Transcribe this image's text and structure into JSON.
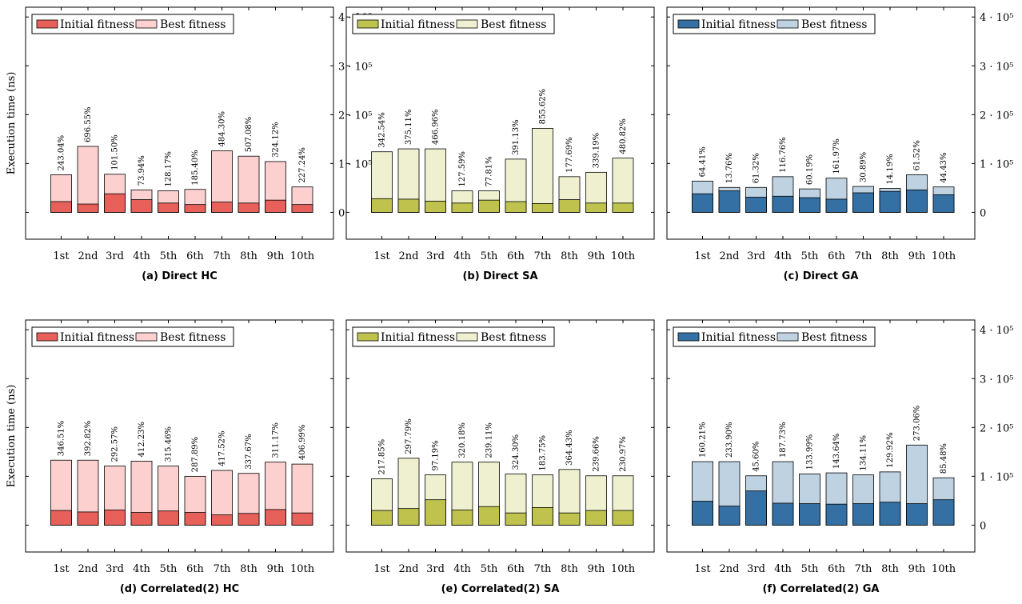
{
  "colors": {
    "hc_initial": "#e8605a",
    "hc_best": "#fbd0cf",
    "sa_initial": "#bfc34e",
    "sa_best": "#eef0cf",
    "ga_initial": "#3470a3",
    "ga_best": "#bed2e2"
  },
  "chart_data": [
    {
      "type": "bar",
      "caption": "(a) Direct HC",
      "ylabel": "Execution time (ns)",
      "ylim": [
        -55000,
        420000
      ],
      "yticks": [
        0,
        100000,
        200000,
        300000,
        400000
      ],
      "ytick_labels": [
        "0",
        "1 · 10⁵",
        "2 · 10⁵",
        "3 · 10⁵",
        "4 · 10⁵"
      ],
      "legend": [
        "Initial fitness",
        "Best fitness"
      ],
      "legend_position": "top-left",
      "categories": [
        "1st",
        "2nd",
        "3rd",
        "4th",
        "5th",
        "6th",
        "7th",
        "8th",
        "9th",
        "10th"
      ],
      "series": [
        {
          "name": "Initial fitness",
          "values": [
            22000,
            17000,
            38000,
            26000,
            19000,
            16000,
            21000,
            19000,
            25000,
            16000
          ]
        },
        {
          "name": "Best fitness",
          "values": [
            77000,
            135000,
            78000,
            46000,
            44000,
            47000,
            126000,
            115000,
            104000,
            52000
          ]
        }
      ],
      "data_labels": [
        "243.04%",
        "696.55%",
        "101.50%",
        "73.94%",
        "128.17%",
        "185.40%",
        "484.30%",
        "507.08%",
        "324.12%",
        "227.24%"
      ],
      "palette": "hc"
    },
    {
      "type": "bar",
      "caption": "(b) Direct SA",
      "ylabel": "",
      "ylim": [
        -55000,
        420000
      ],
      "legend": [
        "Initial fitness",
        "Best fitness"
      ],
      "legend_position": "top-left",
      "categories": [
        "1st",
        "2nd",
        "3rd",
        "4th",
        "5th",
        "6th",
        "7th",
        "8th",
        "9th",
        "10th"
      ],
      "series": [
        {
          "name": "Initial fitness",
          "values": [
            28000,
            27000,
            23000,
            19000,
            25000,
            22000,
            18000,
            26000,
            19000,
            19000
          ]
        },
        {
          "name": "Best fitness",
          "values": [
            124000,
            130000,
            130000,
            44000,
            44000,
            109000,
            172000,
            73000,
            82000,
            111000
          ]
        }
      ],
      "data_labels": [
        "342.54%",
        "375.11%",
        "466.96%",
        "127.59%",
        "77.81%",
        "391.13%",
        "855.62%",
        "177.69%",
        "339.19%",
        "480.82%"
      ],
      "palette": "sa"
    },
    {
      "type": "bar",
      "caption": "(c) Direct GA",
      "ylabel": "",
      "ylim": [
        -55000,
        420000
      ],
      "yticks": [
        0,
        100000,
        200000,
        300000,
        400000
      ],
      "ytick_labels": [
        "0",
        "1 · 10⁵",
        "2 · 10⁵",
        "3 · 10⁵",
        "4 · 10⁵"
      ],
      "legend": [
        "Initial fitness",
        "Best fitness"
      ],
      "legend_position": "top-left",
      "categories": [
        "1st",
        "2nd",
        "3rd",
        "4th",
        "5th",
        "6th",
        "7th",
        "8th",
        "9th",
        "10th"
      ],
      "series": [
        {
          "name": "Initial fitness",
          "values": [
            38000,
            44000,
            31000,
            33000,
            30000,
            27000,
            40000,
            43000,
            46000,
            36000
          ]
        },
        {
          "name": "Best fitness",
          "values": [
            64000,
            51000,
            51000,
            73000,
            48000,
            70000,
            53000,
            49000,
            77000,
            52000
          ]
        }
      ],
      "data_labels": [
        "64.41%",
        "13.76%",
        "61.32%",
        "116.76%",
        "60.19%",
        "161.97%",
        "30.89%",
        "14.19%",
        "61.52%",
        "44.43%"
      ],
      "palette": "ga"
    },
    {
      "type": "bar",
      "caption": "(d) Correlated(2) HC",
      "ylabel": "Execution time (ns)",
      "ylim": [
        -55000,
        420000
      ],
      "legend": [
        "Initial fitness",
        "Best fitness"
      ],
      "legend_position": "top-left",
      "categories": [
        "1st",
        "2nd",
        "3rd",
        "4th",
        "5th",
        "6th",
        "7th",
        "8th",
        "9th",
        "10th"
      ],
      "series": [
        {
          "name": "Initial fitness",
          "values": [
            30000,
            27000,
            31000,
            26000,
            29000,
            26000,
            21000,
            24000,
            32000,
            25000
          ]
        },
        {
          "name": "Best fitness",
          "values": [
            133000,
            133000,
            121000,
            131000,
            121000,
            100000,
            112000,
            106000,
            129000,
            125000
          ]
        }
      ],
      "data_labels": [
        "346.51%",
        "392.82%",
        "292.57%",
        "412.23%",
        "315.46%",
        "287.89%",
        "417.52%",
        "337.67%",
        "311.17%",
        "406.99%"
      ],
      "palette": "hc"
    },
    {
      "type": "bar",
      "caption": "(e) Correlated(2) SA",
      "ylabel": "",
      "ylim": [
        -55000,
        420000
      ],
      "legend": [
        "Initial fitness",
        "Best fitness"
      ],
      "legend_position": "top-left",
      "categories": [
        "1st",
        "2nd",
        "3rd",
        "4th",
        "5th",
        "6th",
        "7th",
        "8th",
        "9th",
        "10th"
      ],
      "series": [
        {
          "name": "Initial fitness",
          "values": [
            30000,
            34000,
            52000,
            31000,
            38000,
            25000,
            36000,
            25000,
            30000,
            30000
          ]
        },
        {
          "name": "Best fitness",
          "values": [
            95000,
            137000,
            103000,
            129000,
            129000,
            105000,
            103000,
            114000,
            101000,
            101000
          ]
        }
      ],
      "data_labels": [
        "217.85%",
        "297.79%",
        "97.19%",
        "320.18%",
        "239.11%",
        "324.30%",
        "183.75%",
        "364.43%",
        "239.66%",
        "230.97%"
      ],
      "palette": "sa"
    },
    {
      "type": "bar",
      "caption": "(f) Correlated(2) GA",
      "ylabel": "",
      "ylim": [
        -55000,
        420000
      ],
      "yticks": [
        0,
        100000,
        200000,
        300000,
        400000
      ],
      "ytick_labels": [
        "0",
        "1 · 10⁵",
        "2 · 10⁵",
        "3 · 10⁵",
        "4 · 10⁵"
      ],
      "legend": [
        "Initial fitness",
        "Best fitness"
      ],
      "legend_position": "top-left",
      "categories": [
        "1st",
        "2nd",
        "3rd",
        "4th",
        "5th",
        "6th",
        "7th",
        "8th",
        "9th",
        "10th"
      ],
      "series": [
        {
          "name": "Initial fitness",
          "values": [
            49000,
            39000,
            70000,
            45000,
            44000,
            43000,
            44000,
            47000,
            44000,
            52000
          ]
        },
        {
          "name": "Best fitness",
          "values": [
            130000,
            130000,
            101000,
            130000,
            105000,
            107000,
            103000,
            109000,
            164000,
            97000
          ]
        }
      ],
      "data_labels": [
        "160.21%",
        "233.90%",
        "45.60%",
        "187.73%",
        "133.99%",
        "143.64%",
        "134.11%",
        "129.92%",
        "273.06%",
        "85.48%"
      ],
      "palette": "ga"
    }
  ]
}
